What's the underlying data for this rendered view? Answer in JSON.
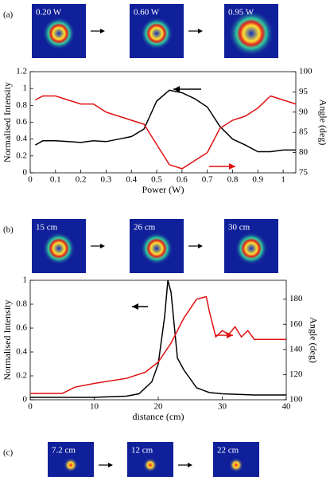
{
  "panels": [
    {
      "label": "(a)",
      "images": [
        "0.20 W",
        "0.60 W",
        "0.95 W"
      ]
    },
    {
      "label": "(b)",
      "images": [
        "15 cm",
        "26 cm",
        "30 cm"
      ]
    },
    {
      "label": "(c)",
      "images": [
        "7.2 cm",
        "12 cm",
        "22 cm"
      ]
    }
  ],
  "chart_data": [
    {
      "type": "line",
      "xlabel": "Power (W)",
      "ylabel": "Normalised Intensity",
      "y2label": "Angle (deg)",
      "xlim": [
        0,
        1.05
      ],
      "xticks": [
        0,
        0.1,
        0.2,
        0.3,
        0.4,
        0.5,
        0.6,
        0.7,
        0.8,
        0.9,
        1
      ],
      "ylim": [
        0,
        1.2
      ],
      "yticks": [
        0,
        0.2,
        0.4,
        0.6,
        0.8,
        1,
        1.2
      ],
      "y2lim": [
        75,
        100
      ],
      "y2ticks": [
        75,
        80,
        85,
        90,
        95,
        100
      ],
      "series": [
        {
          "color": "#000000",
          "x": [
            0.02,
            0.05,
            0.1,
            0.15,
            0.2,
            0.25,
            0.3,
            0.35,
            0.4,
            0.45,
            0.5,
            0.55,
            0.6,
            0.65,
            0.7,
            0.75,
            0.8,
            0.85,
            0.9,
            0.95,
            1.0,
            1.05
          ],
          "values": [
            0.33,
            0.38,
            0.38,
            0.37,
            0.36,
            0.38,
            0.37,
            0.4,
            0.43,
            0.52,
            0.85,
            0.98,
            0.95,
            0.88,
            0.78,
            0.55,
            0.4,
            0.33,
            0.25,
            0.25,
            0.27,
            0.27
          ]
        },
        {
          "color": "#e01010",
          "axis": "y2",
          "x": [
            0.02,
            0.05,
            0.1,
            0.15,
            0.2,
            0.25,
            0.3,
            0.35,
            0.4,
            0.45,
            0.5,
            0.55,
            0.6,
            0.65,
            0.7,
            0.75,
            0.8,
            0.85,
            0.9,
            0.95,
            1.0,
            1.05
          ],
          "values": [
            93,
            94,
            94,
            93,
            92,
            92,
            90,
            89,
            88,
            87,
            82,
            77,
            76,
            78,
            80,
            86,
            88,
            89,
            91,
            94,
            93,
            92
          ]
        }
      ]
    },
    {
      "type": "line",
      "xlabel": "distance (cm)",
      "ylabel": "Normalised Intensity",
      "y2label": "Angle (deg)",
      "xlim": [
        0,
        40
      ],
      "xticks": [
        0,
        10,
        20,
        30,
        40
      ],
      "ylim": [
        0,
        1
      ],
      "yticks": [
        0,
        0.2,
        0.4,
        0.6,
        0.8,
        1
      ],
      "y2lim": [
        100,
        195
      ],
      "y2ticks": [
        100,
        120,
        140,
        160,
        180
      ],
      "series": [
        {
          "color": "#000000",
          "x": [
            0,
            5,
            10,
            15,
            17,
            19,
            20,
            21,
            21.5,
            22,
            23,
            24,
            26,
            28,
            30,
            35,
            40
          ],
          "values": [
            0.02,
            0.02,
            0.02,
            0.03,
            0.05,
            0.15,
            0.3,
            0.7,
            1.0,
            0.9,
            0.35,
            0.25,
            0.1,
            0.06,
            0.05,
            0.04,
            0.04
          ]
        },
        {
          "color": "#e01010",
          "axis": "y2",
          "x": [
            0,
            5,
            7,
            10,
            15,
            18,
            20,
            22,
            24,
            26,
            27.5,
            28,
            29,
            30,
            31,
            32,
            33,
            34,
            35,
            38,
            40
          ],
          "values": [
            105,
            105,
            110,
            113,
            117,
            122,
            130,
            145,
            165,
            180,
            182,
            170,
            150,
            155,
            152,
            158,
            150,
            155,
            148,
            148,
            148
          ]
        }
      ]
    }
  ]
}
